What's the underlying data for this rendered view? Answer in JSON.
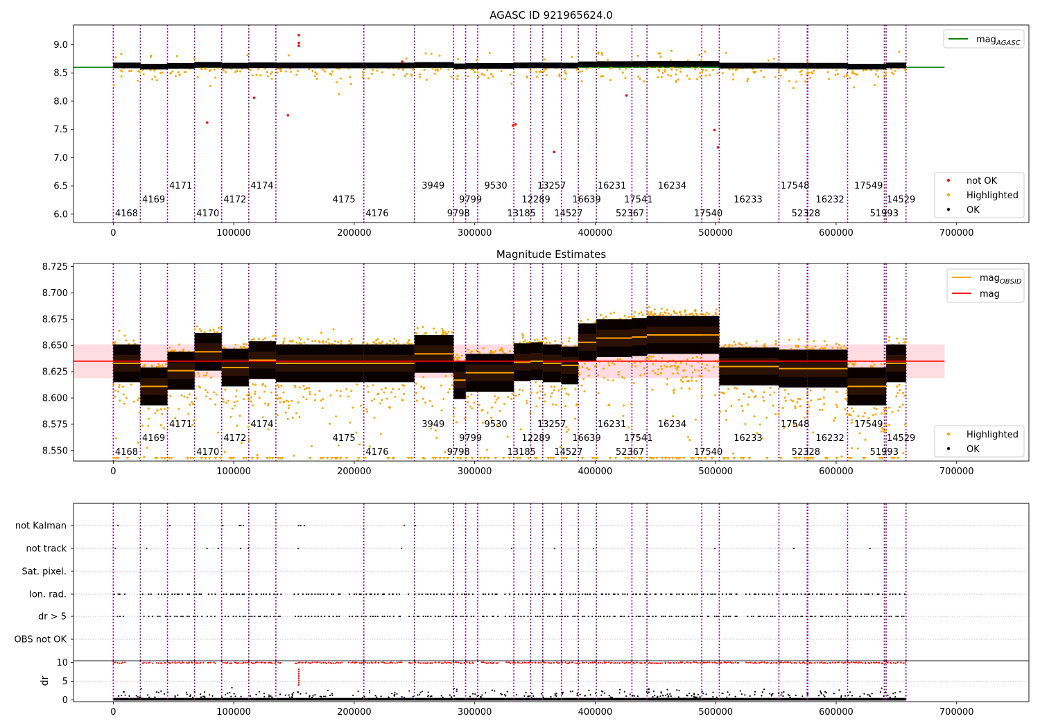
{
  "colors": {
    "ok": "#000000",
    "highlighted": "#ffa500",
    "not_ok": "#ff0000",
    "agasc_line": "#008000",
    "mag_line": "#ff0000",
    "obsid_line": "#ffa500",
    "vlines": "#800080",
    "mag_band": "#ffc0cb"
  },
  "chart_data": [
    {
      "type": "scatter",
      "title": "AGASC ID 921965624.0",
      "xlabel": "",
      "ylabel": "",
      "xlim": [
        -33000,
        760000
      ],
      "ylim": [
        5.85,
        9.35
      ],
      "xticks": [
        0,
        100000,
        200000,
        300000,
        400000,
        500000,
        600000,
        700000
      ],
      "xtick_labels": [
        "0",
        "100000",
        "200000",
        "300000",
        "400000",
        "500000",
        "600000",
        "700000"
      ],
      "yticks": [
        6.0,
        6.5,
        7.0,
        7.5,
        8.0,
        8.5,
        9.0
      ],
      "ytick_labels": [
        "6.0",
        "6.5",
        "7.0",
        "7.5",
        "8.0",
        "8.5",
        "9.0"
      ],
      "mag_agasc": 8.6,
      "mag_agasc_x_range": [
        -33000,
        690000
      ],
      "legend_upper": [
        {
          "label": "mag",
          "sub": "AGASC",
          "marker": "line",
          "color": "#008000"
        }
      ],
      "legend_lower": [
        {
          "label": "not OK",
          "marker": "dot",
          "color": "#ff0000"
        },
        {
          "label": "Highlighted",
          "marker": "dot",
          "color": "#ffa500"
        },
        {
          "label": "OK",
          "marker": "dot",
          "color": "#000000"
        }
      ],
      "not_ok_points": [
        {
          "x": 154000,
          "y": 9.17
        },
        {
          "x": 154000,
          "y": 9.03
        },
        {
          "x": 154000,
          "y": 8.98
        },
        {
          "x": 78000,
          "y": 7.62
        },
        {
          "x": 117000,
          "y": 8.06
        },
        {
          "x": 145000,
          "y": 7.75
        },
        {
          "x": 332000,
          "y": 7.57
        },
        {
          "x": 334000,
          "y": 7.59
        },
        {
          "x": 366000,
          "y": 7.1
        },
        {
          "x": 426000,
          "y": 8.1
        },
        {
          "x": 499000,
          "y": 7.49
        },
        {
          "x": 502000,
          "y": 7.18
        },
        {
          "x": 240000,
          "y": 8.7
        }
      ]
    },
    {
      "type": "scatter",
      "title": "Magnitude Estimates",
      "xlabel": "",
      "ylabel": "",
      "xlim": [
        -33000,
        760000
      ],
      "ylim": [
        8.54,
        8.728
      ],
      "xticks": [
        0,
        100000,
        200000,
        300000,
        400000,
        500000,
        600000,
        700000
      ],
      "xtick_labels": [
        "0",
        "100000",
        "200000",
        "300000",
        "400000",
        "500000",
        "600000",
        "700000"
      ],
      "yticks": [
        8.55,
        8.575,
        8.6,
        8.625,
        8.65,
        8.675,
        8.7,
        8.725
      ],
      "ytick_labels": [
        "8.550",
        "8.575",
        "8.600",
        "8.625",
        "8.650",
        "8.675",
        "8.700",
        "8.725"
      ],
      "mag": 8.635,
      "mag_band": [
        8.619,
        8.651
      ],
      "mag_line_x_range": [
        -33000,
        690000
      ],
      "legend_upper": [
        {
          "label": "mag",
          "sub": "OBSID",
          "marker": "line",
          "color": "#ffa500"
        },
        {
          "label": "mag",
          "sub": "",
          "marker": "line",
          "color": "#ff0000"
        }
      ],
      "legend_lower": [
        {
          "label": "Highlighted",
          "marker": "dot",
          "color": "#ffa500"
        },
        {
          "label": "OK",
          "marker": "dot",
          "color": "#000000"
        }
      ]
    },
    {
      "type": "scatter",
      "title": "",
      "xlabel": "",
      "ylabel": "",
      "xlim": [
        -33000,
        760000
      ],
      "flag_rows": [
        "not Kalman",
        "not track",
        "Sat. pixel.",
        "Ion. rad.",
        "dr > 5",
        "OBS not OK"
      ],
      "flag_segments": {
        "not Kalman": [
          [
            0,
            4000
          ],
          [
            45000,
            47000
          ],
          [
            90000,
            92000
          ],
          [
            103000,
            110000
          ],
          [
            153000,
            160000
          ],
          [
            240000,
            243000
          ],
          [
            249000,
            251000
          ]
        ],
        "not track": [
          [
            1000,
            2000
          ],
          [
            27000,
            28000
          ],
          [
            77000,
            78000
          ],
          [
            87000,
            88000
          ],
          [
            105000,
            106000
          ],
          [
            112000,
            113000
          ],
          [
            153000,
            154000
          ],
          [
            239000,
            240000
          ],
          [
            330000,
            331000
          ],
          [
            366000,
            367000
          ],
          [
            398000,
            399000
          ],
          [
            499000,
            500000
          ],
          [
            564000,
            565000
          ],
          [
            628000,
            629000
          ]
        ],
        "Sat. pixel.": [],
        "Ion. rad.": [
          [
            0,
            10000
          ],
          [
            24000,
            33000
          ],
          [
            36000,
            75000
          ],
          [
            78000,
            85000
          ],
          [
            90000,
            140000
          ],
          [
            150000,
            190000
          ],
          [
            195000,
            240000
          ],
          [
            245000,
            300000
          ],
          [
            305000,
            320000
          ],
          [
            325000,
            520000
          ],
          [
            525000,
            658000
          ]
        ],
        "dr > 5": [
          [
            0,
            10000
          ],
          [
            24000,
            33000
          ],
          [
            36000,
            75000
          ],
          [
            78000,
            85000
          ],
          [
            90000,
            140000
          ],
          [
            150000,
            190000
          ],
          [
            195000,
            240000
          ],
          [
            245000,
            300000
          ],
          [
            305000,
            320000
          ],
          [
            325000,
            520000
          ],
          [
            525000,
            658000
          ]
        ],
        "OBS not OK": []
      }
    },
    {
      "type": "scatter",
      "title": "",
      "xlabel": "",
      "ylabel": "dr",
      "xlim": [
        -33000,
        760000
      ],
      "ylim": [
        -0.5,
        10.5
      ],
      "yticks": [
        0,
        5,
        10
      ],
      "ytick_labels": [
        "0",
        "5",
        "10"
      ],
      "xticks": [
        0,
        100000,
        200000,
        300000,
        400000,
        500000,
        600000,
        700000
      ],
      "xtick_labels": [
        "0",
        "100000",
        "200000",
        "300000",
        "400000",
        "500000",
        "600000",
        "700000"
      ]
    }
  ],
  "obsids": [
    {
      "id": "4168",
      "x_start": 0,
      "x_end": 22500,
      "mag": 8.633,
      "level": 0,
      "label_x": 1500
    },
    {
      "id": "4169",
      "x_start": 22500,
      "x_end": 45000,
      "mag": 8.611,
      "level": 1,
      "label_x": 24000
    },
    {
      "id": "4171",
      "x_start": 45000,
      "x_end": 67500,
      "mag": 8.626,
      "level": 2,
      "label_x": 46500
    },
    {
      "id": "4170",
      "x_start": 67500,
      "x_end": 90000,
      "mag": 8.644,
      "level": 0,
      "label_x": 69000
    },
    {
      "id": "4172",
      "x_start": 90000,
      "x_end": 112500,
      "mag": 8.629,
      "level": 1,
      "label_x": 91500
    },
    {
      "id": "4174",
      "x_start": 112500,
      "x_end": 135000,
      "mag": 8.636,
      "level": 2,
      "label_x": 114000
    },
    {
      "id": "4175",
      "x_start": 135000,
      "x_end": 208000,
      "mag": 8.633,
      "level": 1,
      "label_x": 182000
    },
    {
      "id": "4176",
      "x_start": 208000,
      "x_end": 250000,
      "mag": 8.633,
      "level": 0,
      "label_x": 209500
    },
    {
      "id": "3949",
      "x_start": 250000,
      "x_end": 282500,
      "mag": 8.642,
      "level": 2,
      "label_x": 256000
    },
    {
      "id": "9798",
      "x_start": 282500,
      "x_end": 292500,
      "mag": 8.617,
      "level": 0,
      "label_x": 277000
    },
    {
      "id": "9799",
      "x_start": 292500,
      "x_end": 302500,
      "mag": 8.624,
      "level": 1,
      "label_x": 287000
    },
    {
      "id": "9530",
      "x_start": 302500,
      "x_end": 332500,
      "mag": 8.624,
      "level": 2,
      "label_x": 308000
    },
    {
      "id": "13185",
      "x_start": 332500,
      "x_end": 346500,
      "mag": 8.634,
      "level": 0,
      "label_x": 327000
    },
    {
      "id": "12289",
      "x_start": 346500,
      "x_end": 356500,
      "mag": 8.635,
      "level": 1,
      "label_x": 339000
    },
    {
      "id": "13257",
      "x_start": 356500,
      "x_end": 372000,
      "mag": 8.633,
      "level": 2,
      "label_x": 352000
    },
    {
      "id": "14527",
      "x_start": 372000,
      "x_end": 386000,
      "mag": 8.631,
      "level": 0,
      "label_x": 366000
    },
    {
      "id": "16639",
      "x_start": 386000,
      "x_end": 401000,
      "mag": 8.653,
      "level": 1,
      "label_x": 381000
    },
    {
      "id": "16231",
      "x_start": 401000,
      "x_end": 430500,
      "mag": 8.657,
      "level": 2,
      "label_x": 402000
    },
    {
      "id": "52367",
      "x_start": 430500,
      "x_end": 443000,
      "mag": 8.658,
      "level": 0,
      "label_x": 417000
    },
    {
      "id": "17541",
      "x_start": 443000,
      "x_end": 488500,
      "mag": 8.66,
      "level": 1,
      "label_x": 424000
    },
    {
      "id": "16234",
      "x_start": 443000,
      "x_end": 488500,
      "mag": 8.66,
      "level": 2,
      "label_x": 452000
    },
    {
      "id": "17540",
      "x_start": 488500,
      "x_end": 503000,
      "mag": 8.66,
      "level": 0,
      "label_x": 482000
    },
    {
      "id": "16233",
      "x_start": 503000,
      "x_end": 552500,
      "mag": 8.63,
      "level": 1,
      "label_x": 515000
    },
    {
      "id": "17548",
      "x_start": 552500,
      "x_end": 576000,
      "mag": 8.628,
      "level": 2,
      "label_x": 554000
    },
    {
      "id": "52328",
      "x_start": 576000,
      "x_end": 576500,
      "mag": 8.628,
      "level": 0,
      "label_x": 563000
    },
    {
      "id": "16232",
      "x_start": 576500,
      "x_end": 609500,
      "mag": 8.628,
      "level": 1,
      "label_x": 583000
    },
    {
      "id": "17549",
      "x_start": 609500,
      "x_end": 640000,
      "mag": 8.611,
      "level": 2,
      "label_x": 615000
    },
    {
      "id": "51993",
      "x_start": 640000,
      "x_end": 641500,
      "mag": 8.611,
      "level": 0,
      "label_x": 628000
    },
    {
      "id": "14529",
      "x_start": 641500,
      "x_end": 658000,
      "mag": 8.633,
      "level": 1,
      "label_x": 642000
    }
  ],
  "vlines": [
    0,
    22500,
    45000,
    67500,
    90000,
    112500,
    135000,
    208000,
    250000,
    282500,
    292500,
    302500,
    332500,
    346500,
    356500,
    372000,
    386000,
    401000,
    430500,
    443000,
    488500,
    503000,
    552500,
    576000,
    576500,
    609500,
    640000,
    641500,
    658000
  ]
}
